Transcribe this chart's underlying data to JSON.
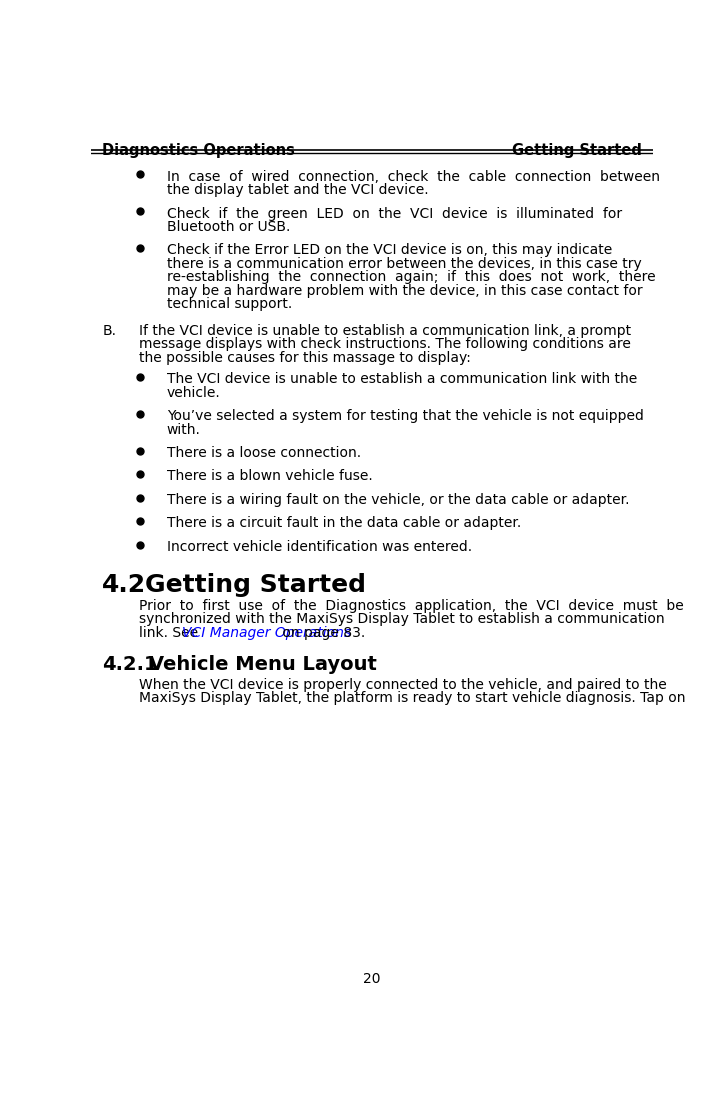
{
  "header_left": "Diagnostics Operations",
  "header_right": "Getting Started",
  "page_number": "20",
  "bg_color": "#ffffff",
  "text_color": "#000000",
  "link_color": "#0000ff",
  "header_fontsize": 10.5,
  "body_fontsize": 10,
  "bullet_fontsize": 10,
  "section_heading_fontsize": 18,
  "subsection_heading_fontsize": 14,
  "bullet_items_top": [
    "In  case  of  wired  connection,  check  the  cable  connection  between\nthe display tablet and the VCI device.",
    "Check  if  the  green  LED  on  the  VCI  device  is  illuminated  for\nBluetooth or USB.",
    "Check if the Error LED on the VCI device is on, this may indicate\nthere is a communication error between the devices, in this case try\nre-establishing  the  connection  again;  if  this  does  not  work,  there\nmay be a hardware problem with the device, in this case contact for\ntechnical support."
  ],
  "b_paragraph": "If the VCI device is unable to establish a communication link, a prompt\nmessage displays with check instructions. The following conditions are\nthe possible causes for this massage to display:",
  "bullet_items_bottom": [
    "The VCI device is unable to establish a communication link with the\nvehicle.",
    "You’ve selected a system for testing that the vehicle is not equipped\nwith.",
    "There is a loose connection.",
    "There is a blown vehicle fuse.",
    "There is a wiring fault on the vehicle, or the data cable or adapter.",
    "There is a circuit fault in the data cable or adapter.",
    "Incorrect vehicle identification was entered."
  ],
  "section_42": "4.2",
  "section_42_title": "Getting Started",
  "para_42_line1": "Prior  to  first  use  of  the  Diagnostics  application,  the  VCI  device  must  be",
  "para_42_line2": "synchronized with the MaxiSys Display Tablet to establish a communication",
  "para_42_line3_pre": "link. See ",
  "para_42_link": "VCI Manager Operations",
  "para_42_line3_post": " on page 83.",
  "section_421": "4.2.1",
  "section_421_title": "Vehicle Menu Layout",
  "para_421_line1": "When the VCI device is properly connected to the vehicle, and paired to the",
  "para_421_line2": "MaxiSys Display Tablet, the platform is ready to start vehicle diagnosis. Tap on"
}
